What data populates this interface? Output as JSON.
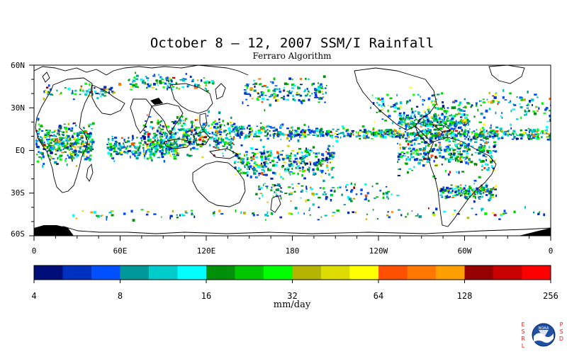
{
  "title": "October 8 – 12, 2007 SSM/I Rainfall",
  "subtitle": "Ferraro Algorithm",
  "lat_labels": [
    "60N",
    "30N",
    "EQ",
    "30S",
    "60S"
  ],
  "lon_labels": [
    "0",
    "60E",
    "120E",
    "180",
    "120W",
    "60W",
    "0"
  ],
  "legend": {
    "unit": "mm/day",
    "tick_labels": [
      "4",
      "8",
      "16",
      "32",
      "64",
      "128",
      "256"
    ],
    "colors": [
      "#000e7a",
      "#0030c0",
      "#0050ff",
      "#009898",
      "#00cccc",
      "#00ffff",
      "#00900a",
      "#00c800",
      "#00ff00",
      "#b4b400",
      "#dcdc00",
      "#ffff00",
      "#ff5000",
      "#ff7800",
      "#ffa000",
      "#960000",
      "#c80000",
      "#ff0000"
    ]
  },
  "logo": {
    "left_letters": [
      "E",
      "S",
      "R",
      "L"
    ],
    "right_letters": [
      "P",
      "S",
      "D"
    ],
    "emblem_text": "NOAA"
  }
}
